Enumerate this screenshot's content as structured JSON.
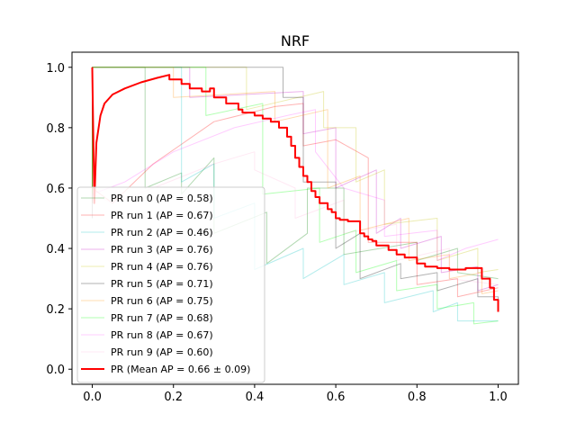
{
  "chart_data": {
    "type": "line",
    "title": "NRF",
    "xlabel": "",
    "ylabel": "",
    "xlim": [
      -0.05,
      1.05
    ],
    "ylim": [
      -0.05,
      1.05
    ],
    "xticks": [
      0.0,
      0.2,
      0.4,
      0.6,
      0.8,
      1.0
    ],
    "yticks": [
      0.0,
      0.2,
      0.4,
      0.6,
      0.8,
      1.0
    ],
    "xtick_labels": [
      "0.0",
      "0.2",
      "0.4",
      "0.6",
      "0.8",
      "1.0"
    ],
    "ytick_labels": [
      "0.0",
      "0.2",
      "0.4",
      "0.6",
      "0.8",
      "1.0"
    ],
    "grid": false,
    "legend_position": "lower-left",
    "series": [
      {
        "name": "PR run 0 (AP = 0.58)",
        "color": "#008000",
        "opacity": 0.3,
        "x": [
          0.0,
          0.0,
          0.13,
          0.13,
          0.22,
          0.22,
          0.3,
          0.3,
          0.43,
          0.43,
          0.53,
          0.53,
          0.62,
          0.62,
          0.8,
          0.8,
          0.9,
          0.9,
          1.0
        ],
        "y": [
          0.55,
          1.0,
          1.0,
          0.6,
          0.65,
          0.58,
          0.7,
          0.45,
          0.52,
          0.35,
          0.45,
          0.6,
          0.6,
          0.38,
          0.42,
          0.36,
          0.4,
          0.32,
          0.3
        ]
      },
      {
        "name": "PR run 1 (AP = 0.67)",
        "color": "#ff0000",
        "opacity": 0.3,
        "x": [
          0.0,
          0.0,
          0.05,
          0.15,
          0.3,
          0.45,
          0.52,
          0.52,
          0.6,
          0.68,
          0.68,
          0.8,
          0.8,
          0.9,
          0.9,
          1.0
        ],
        "y": [
          0.5,
          0.6,
          0.55,
          0.68,
          0.82,
          0.87,
          0.88,
          0.74,
          0.76,
          0.7,
          0.42,
          0.42,
          0.28,
          0.3,
          0.24,
          0.27
        ]
      },
      {
        "name": "PR run 2 (AP = 0.46)",
        "color": "#00bfbf",
        "opacity": 0.3,
        "x": [
          0.0,
          0.0,
          0.22,
          0.22,
          0.3,
          0.3,
          0.4,
          0.4,
          0.52,
          0.52,
          0.62,
          0.62,
          0.72,
          0.72,
          0.84,
          0.84,
          0.9,
          0.9,
          1.0
        ],
        "y": [
          0.5,
          1.0,
          1.0,
          0.62,
          0.68,
          0.5,
          0.55,
          0.33,
          0.4,
          0.3,
          0.38,
          0.28,
          0.32,
          0.22,
          0.26,
          0.19,
          0.22,
          0.16,
          0.16
        ]
      },
      {
        "name": "PR run 3 (AP = 0.76)",
        "color": "#bf00bf",
        "opacity": 0.3,
        "x": [
          0.0,
          0.0,
          0.24,
          0.24,
          0.52,
          0.52,
          0.6,
          0.6,
          0.7,
          0.7,
          0.76,
          0.76,
          0.86,
          0.86,
          0.95,
          0.95,
          1.0
        ],
        "y": [
          0.55,
          1.0,
          1.0,
          0.9,
          0.92,
          0.78,
          0.8,
          0.6,
          0.66,
          0.45,
          0.5,
          0.4,
          0.44,
          0.32,
          0.34,
          0.26,
          0.28
        ]
      },
      {
        "name": "PR run 4 (AP = 0.76)",
        "color": "#bfbf00",
        "opacity": 0.3,
        "x": [
          0.0,
          0.0,
          0.38,
          0.38,
          0.57,
          0.57,
          0.65,
          0.65,
          0.72,
          0.72,
          0.85,
          0.85,
          0.95,
          0.95,
          1.0
        ],
        "y": [
          0.55,
          1.0,
          1.0,
          0.86,
          0.92,
          0.8,
          0.8,
          0.62,
          0.66,
          0.48,
          0.5,
          0.36,
          0.4,
          0.32,
          0.33
        ]
      },
      {
        "name": "PR run 5 (AP = 0.71)",
        "color": "#000000",
        "opacity": 0.3,
        "x": [
          0.0,
          0.0,
          0.47,
          0.47,
          0.52,
          0.52,
          0.6,
          0.6,
          0.66,
          0.66,
          0.76,
          0.76,
          0.85,
          0.85,
          0.95,
          0.95,
          1.0,
          1.0
        ],
        "y": [
          0.55,
          1.0,
          1.0,
          0.9,
          0.9,
          0.62,
          0.62,
          0.4,
          0.45,
          0.3,
          0.35,
          0.3,
          0.32,
          0.26,
          0.3,
          0.24,
          0.24,
          0.2
        ]
      },
      {
        "name": "PR run 6 (AP = 0.75)",
        "color": "#ff8c00",
        "opacity": 0.3,
        "x": [
          0.0,
          0.0,
          0.2,
          0.2,
          0.45,
          0.45,
          0.58,
          0.58,
          0.66,
          0.66,
          0.78,
          0.78,
          0.88,
          0.88,
          0.96,
          0.96,
          1.0
        ],
        "y": [
          0.55,
          1.0,
          1.0,
          0.9,
          0.92,
          0.82,
          0.86,
          0.6,
          0.64,
          0.46,
          0.5,
          0.36,
          0.38,
          0.3,
          0.32,
          0.25,
          0.26
        ]
      },
      {
        "name": "PR run 7 (AP = 0.68)",
        "color": "#00ff00",
        "opacity": 0.3,
        "x": [
          0.0,
          0.0,
          0.28,
          0.28,
          0.42,
          0.42,
          0.56,
          0.56,
          0.65,
          0.65,
          0.75,
          0.75,
          0.85,
          0.85,
          0.94,
          0.94,
          1.0
        ],
        "y": [
          0.5,
          1.0,
          1.0,
          0.84,
          0.88,
          0.58,
          0.6,
          0.42,
          0.46,
          0.32,
          0.36,
          0.26,
          0.28,
          0.2,
          0.22,
          0.15,
          0.16
        ]
      },
      {
        "name": "PR run 8 (AP = 0.67)",
        "color": "#ff00ff",
        "opacity": 0.2,
        "x": [
          0.0,
          0.0,
          0.08,
          0.2,
          0.35,
          0.48,
          0.55,
          0.55,
          0.62,
          0.72,
          0.72,
          0.85,
          0.85,
          0.92,
          1.0
        ],
        "y": [
          0.5,
          0.58,
          0.62,
          0.72,
          0.8,
          0.84,
          0.86,
          0.72,
          0.6,
          0.56,
          0.44,
          0.46,
          0.36,
          0.4,
          0.43
        ]
      },
      {
        "name": "PR run 9 (AP = 0.60)",
        "color": "#ff69b4",
        "opacity": 0.15,
        "x": [
          0.0,
          0.0,
          0.05,
          0.15,
          0.3,
          0.4,
          0.4,
          0.5,
          0.5,
          0.62,
          0.62,
          0.75,
          0.75,
          0.88,
          0.88,
          1.0
        ],
        "y": [
          0.5,
          0.58,
          0.55,
          0.6,
          0.68,
          0.72,
          0.66,
          0.6,
          0.5,
          0.56,
          0.45,
          0.48,
          0.36,
          0.4,
          0.3,
          0.28
        ]
      },
      {
        "name": "PR (Mean AP = 0.66 ± 0.09)",
        "color": "#ff0000",
        "opacity": 1.0,
        "width": 2,
        "x": [
          0.0,
          0.005,
          0.01,
          0.02,
          0.03,
          0.05,
          0.08,
          0.12,
          0.16,
          0.19,
          0.19,
          0.22,
          0.22,
          0.24,
          0.24,
          0.27,
          0.27,
          0.29,
          0.29,
          0.3,
          0.3,
          0.33,
          0.33,
          0.36,
          0.36,
          0.37,
          0.37,
          0.4,
          0.4,
          0.42,
          0.42,
          0.44,
          0.44,
          0.46,
          0.46,
          0.48,
          0.48,
          0.49,
          0.49,
          0.5,
          0.5,
          0.51,
          0.51,
          0.52,
          0.52,
          0.53,
          0.53,
          0.54,
          0.54,
          0.55,
          0.55,
          0.56,
          0.56,
          0.58,
          0.58,
          0.59,
          0.59,
          0.6,
          0.6,
          0.61,
          0.61,
          0.63,
          0.63,
          0.66,
          0.66,
          0.67,
          0.67,
          0.68,
          0.68,
          0.69,
          0.69,
          0.7,
          0.7,
          0.73,
          0.73,
          0.75,
          0.75,
          0.77,
          0.77,
          0.8,
          0.8,
          0.82,
          0.82,
          0.85,
          0.85,
          0.88,
          0.88,
          0.9,
          0.9,
          0.92,
          0.92,
          0.96,
          0.96,
          0.98,
          0.98,
          0.99,
          0.99,
          1.0,
          1.0
        ],
        "y": [
          1.0,
          0.55,
          0.75,
          0.84,
          0.88,
          0.91,
          0.93,
          0.95,
          0.965,
          0.975,
          0.96,
          0.96,
          0.945,
          0.945,
          0.93,
          0.93,
          0.92,
          0.92,
          0.93,
          0.93,
          0.9,
          0.9,
          0.88,
          0.88,
          0.86,
          0.86,
          0.85,
          0.85,
          0.84,
          0.84,
          0.83,
          0.83,
          0.82,
          0.82,
          0.8,
          0.8,
          0.77,
          0.77,
          0.74,
          0.74,
          0.7,
          0.7,
          0.67,
          0.67,
          0.64,
          0.64,
          0.62,
          0.62,
          0.59,
          0.59,
          0.57,
          0.57,
          0.55,
          0.55,
          0.53,
          0.53,
          0.52,
          0.52,
          0.5,
          0.5,
          0.495,
          0.495,
          0.49,
          0.49,
          0.45,
          0.45,
          0.44,
          0.44,
          0.43,
          0.43,
          0.425,
          0.425,
          0.41,
          0.41,
          0.395,
          0.395,
          0.38,
          0.38,
          0.37,
          0.37,
          0.35,
          0.35,
          0.34,
          0.34,
          0.335,
          0.335,
          0.33,
          0.33,
          0.33,
          0.33,
          0.335,
          0.335,
          0.3,
          0.3,
          0.27,
          0.27,
          0.23,
          0.23,
          0.19
        ]
      }
    ]
  }
}
